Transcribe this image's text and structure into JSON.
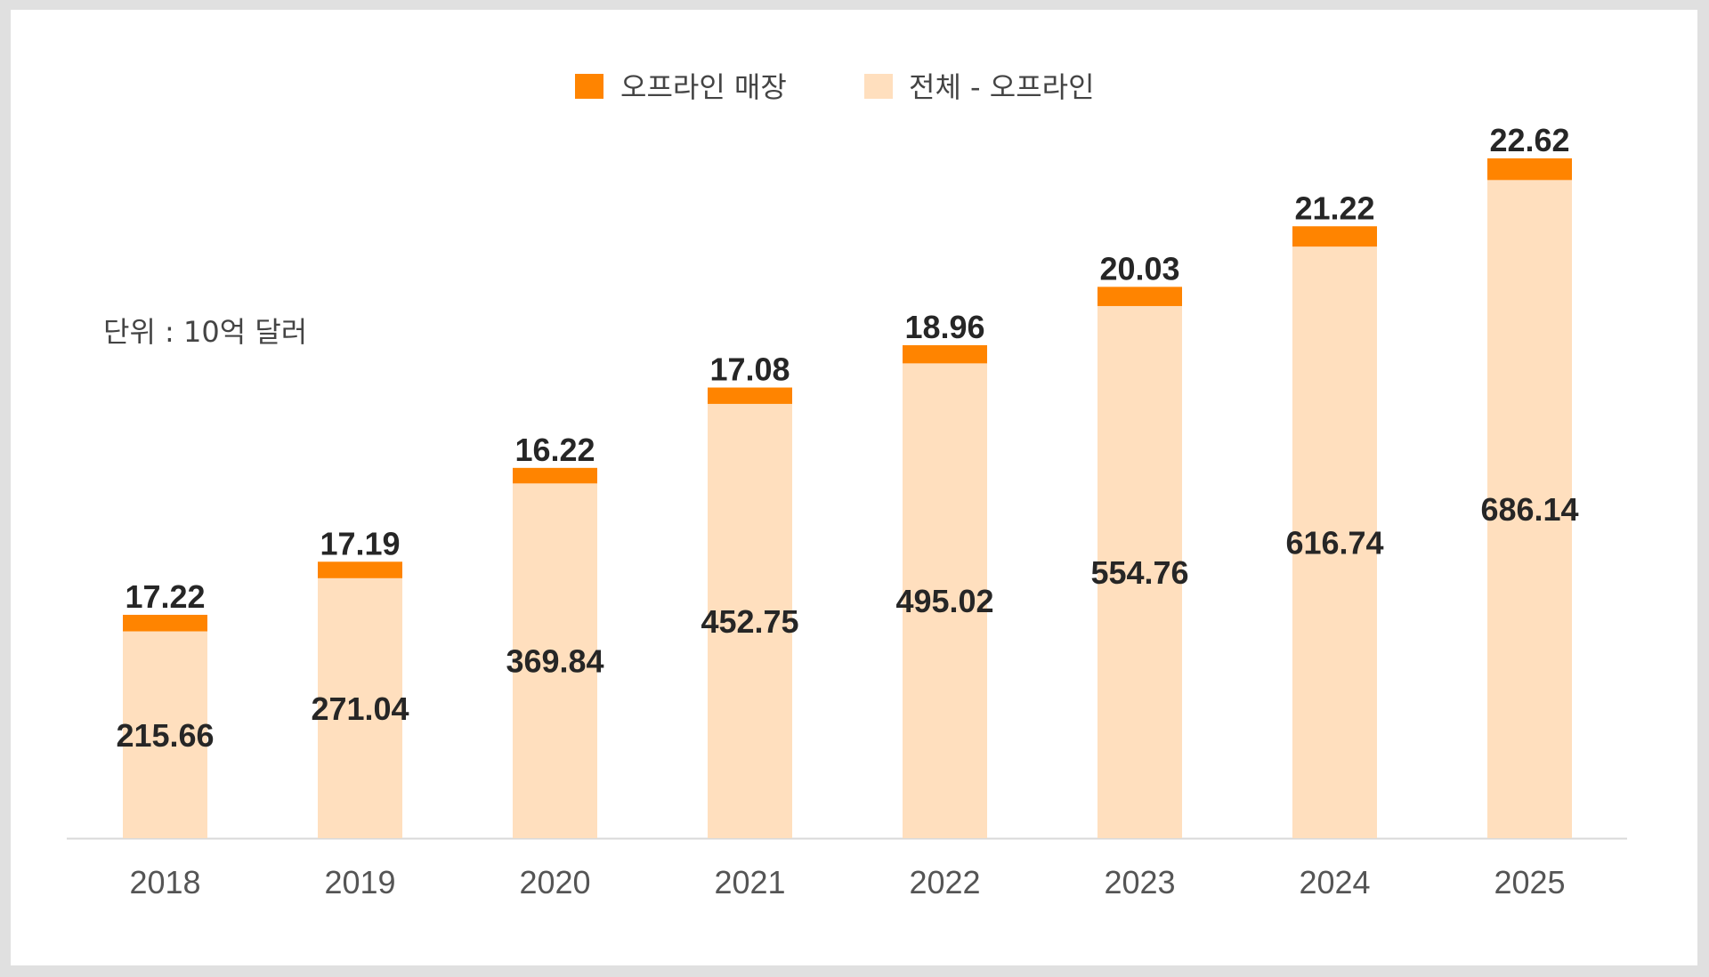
{
  "chart_data": {
    "type": "bar",
    "stacked": true,
    "title": "",
    "unit_note": "단위 : 10억 달러",
    "xlabel": "",
    "ylabel": "",
    "ylim": [
      0,
      720
    ],
    "grid": false,
    "legend_position": "top-center",
    "categories": [
      "2018",
      "2019",
      "2020",
      "2021",
      "2022",
      "2023",
      "2024",
      "2025"
    ],
    "series": [
      {
        "name": "전체 - 오프라인",
        "color": "#FFDFBE",
        "values": [
          215.66,
          271.04,
          369.84,
          452.75,
          495.02,
          554.76,
          616.74,
          686.14
        ],
        "labels": [
          "215.66",
          "271.04",
          "369.84",
          "452.75",
          "495.02",
          "554.76",
          "616.74",
          "686.14"
        ]
      },
      {
        "name": "오프라인 매장",
        "color": "#FF8400",
        "values": [
          17.22,
          17.19,
          16.22,
          17.08,
          18.96,
          20.03,
          21.22,
          22.62
        ],
        "labels": [
          "17.22",
          "17.19",
          "16.22",
          "17.08",
          "18.96",
          "20.03",
          "21.22",
          "22.62"
        ]
      }
    ],
    "legend": [
      {
        "name": "오프라인 매장",
        "color": "#FF8400"
      },
      {
        "name": "전체 - 오프라인",
        "color": "#FFDFBE"
      }
    ]
  }
}
